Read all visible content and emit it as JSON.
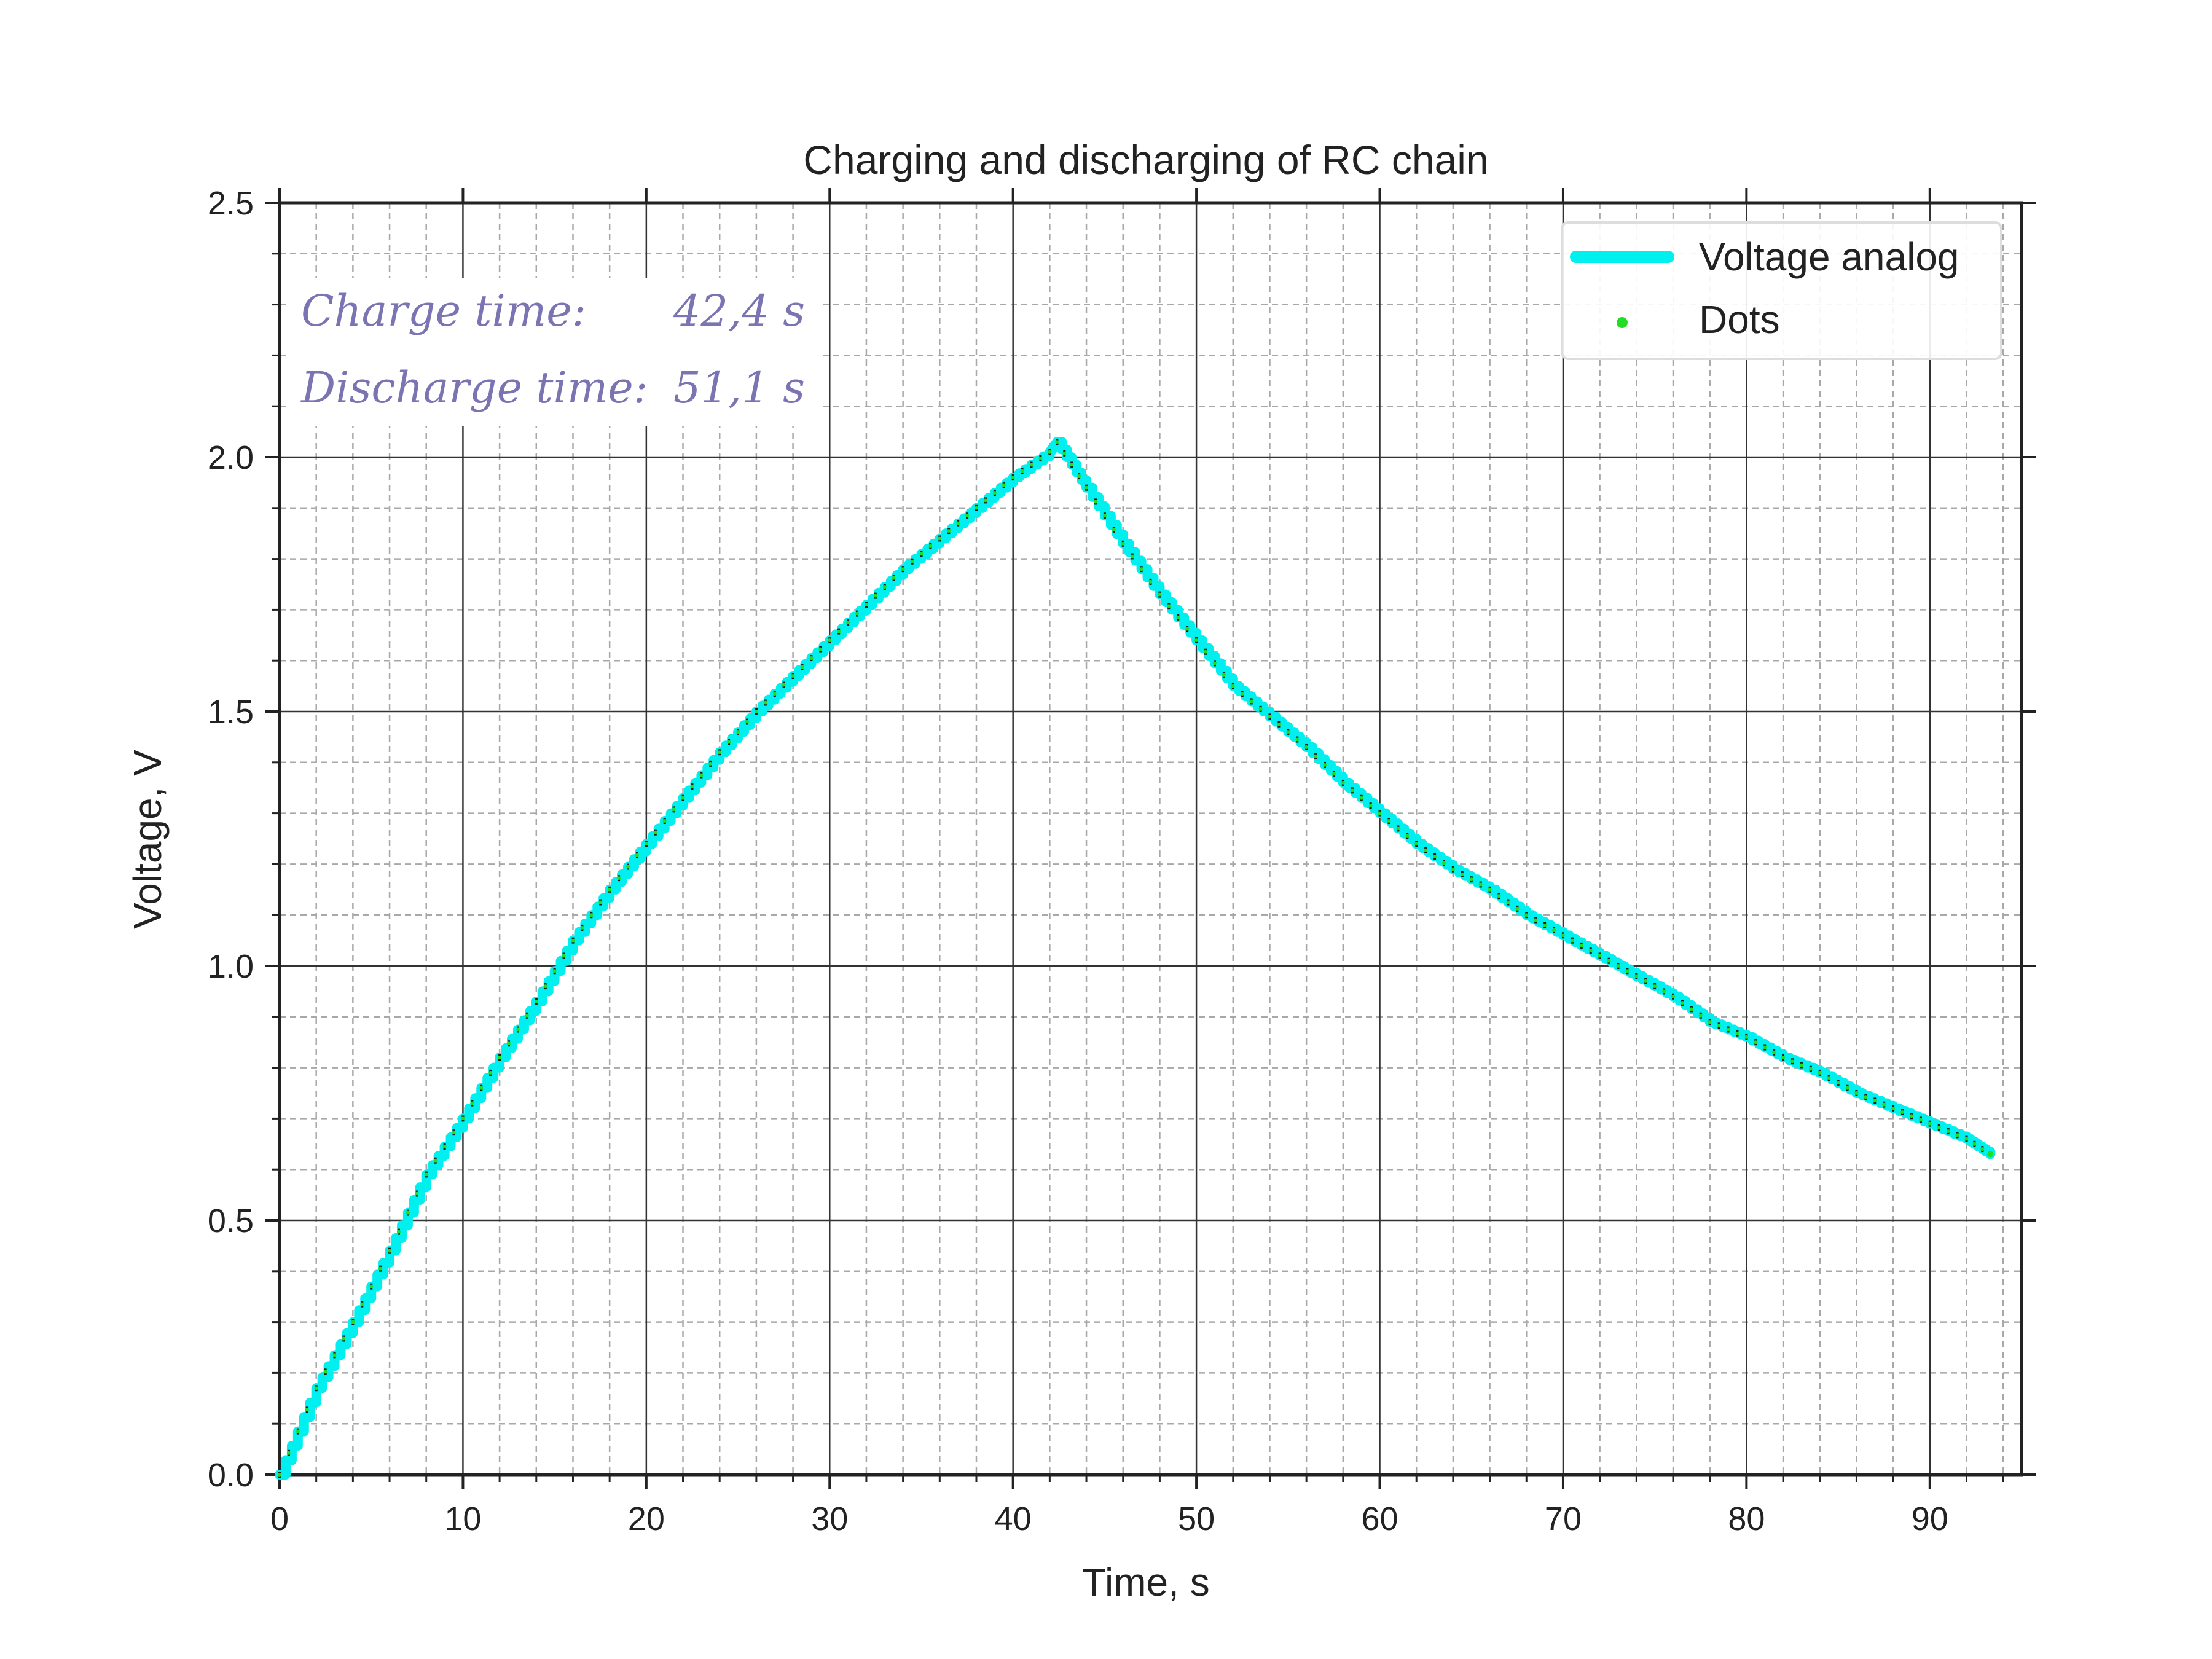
{
  "chart_data": {
    "type": "line",
    "title": "Charging and discharging of RC chain",
    "xlabel": "Time, s",
    "ylabel": "Voltage, V",
    "xlim": [
      0,
      95
    ],
    "ylim": [
      0,
      2.5
    ],
    "x_ticks": [
      "0",
      "10",
      "20",
      "30",
      "40",
      "50",
      "60",
      "70",
      "80",
      "90"
    ],
    "y_ticks": [
      "0.0",
      "0.5",
      "1.0",
      "1.5",
      "2.0",
      "2.5"
    ],
    "grid": "major and minor",
    "legend_position": "top-right",
    "series": [
      {
        "name": "Voltage analog",
        "style": "line",
        "color": "#00f0f0",
        "x": [
          0,
          2,
          4,
          6,
          8,
          10,
          12,
          14,
          16,
          18,
          20,
          22,
          24,
          26,
          28,
          30,
          32,
          34,
          36,
          38,
          40,
          42,
          42.4,
          44,
          46,
          48,
          50,
          52,
          54,
          56,
          58,
          60,
          62,
          64,
          66,
          68,
          70,
          72,
          74,
          76,
          78,
          80,
          82,
          84,
          86,
          88,
          90,
          92,
          93.3
        ],
        "y": [
          0.0,
          0.17,
          0.3,
          0.44,
          0.59,
          0.7,
          0.82,
          0.93,
          1.05,
          1.15,
          1.24,
          1.33,
          1.42,
          1.5,
          1.57,
          1.64,
          1.71,
          1.78,
          1.84,
          1.9,
          1.96,
          2.01,
          2.03,
          1.94,
          1.83,
          1.73,
          1.64,
          1.55,
          1.49,
          1.43,
          1.36,
          1.3,
          1.24,
          1.19,
          1.15,
          1.1,
          1.06,
          1.02,
          0.98,
          0.94,
          0.89,
          0.86,
          0.82,
          0.79,
          0.75,
          0.72,
          0.69,
          0.66,
          0.63
        ]
      },
      {
        "name": "Dots",
        "style": "dots",
        "color": "#22dd22"
      }
    ],
    "annotations": [
      {
        "label": "Charge time:",
        "value": "42,4 s"
      },
      {
        "label": "Discharge time:",
        "value": "51,1 s"
      }
    ]
  }
}
